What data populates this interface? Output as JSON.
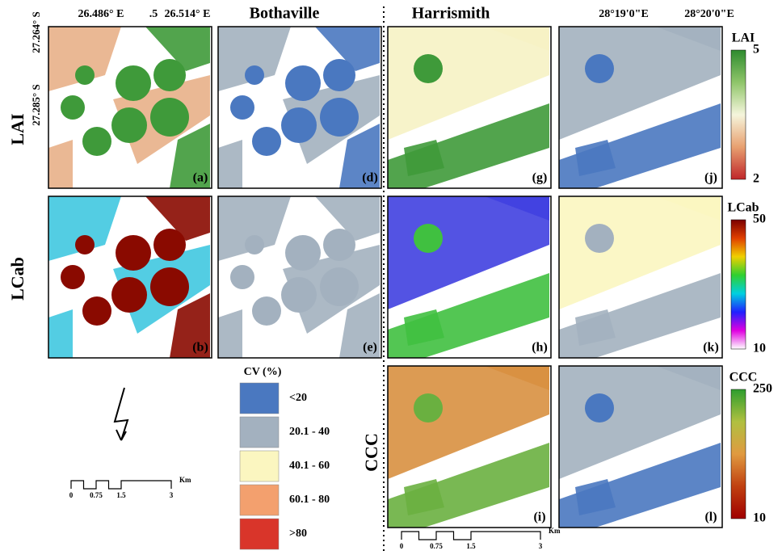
{
  "top_labels": {
    "lon1": "26.486° E",
    "lon2": ".5",
    "lon3": "26.514° E",
    "site1": "Bothaville",
    "site2": "Harrismith",
    "lon4": "28°19'0\"E",
    "lon5": "28°20'0\"E"
  },
  "lat_labels": [
    "27.264° S",
    "27.285° S"
  ],
  "row_labels": {
    "lai": "LAI",
    "lcab": "LCab",
    "ccc": "CCC"
  },
  "panels": [
    "(a)",
    "(b)",
    "(d)",
    "(e)",
    "(g)",
    "(h)",
    "(i)",
    "(j)",
    "(k)",
    "(l)"
  ],
  "colorbars": [
    {
      "title": "LAI",
      "max": "5",
      "min": "2",
      "colors": [
        "#2e8b2e",
        "#8fc56a",
        "#f5f5dc",
        "#e8a070",
        "#c0262a"
      ]
    },
    {
      "title": "LCab",
      "max": "50",
      "min": "10",
      "colors": [
        "#7a0000",
        "#e04000",
        "#f0d000",
        "#30d030",
        "#00d0e0",
        "#2020ff",
        "#e000e0",
        "#ffffff"
      ]
    },
    {
      "title": "CCC",
      "max": "250",
      "min": "10",
      "colors": [
        "#2e9e2e",
        "#b0c040",
        "#e09a40",
        "#c04010",
        "#a00000"
      ]
    }
  ],
  "legend": {
    "title": "CV (%)",
    "classes": [
      {
        "label": "<20",
        "color": "#4a78c0"
      },
      {
        "label": "20.1 - 40",
        "color": "#a3b1bf"
      },
      {
        "label": "40.1 - 60",
        "color": "#fbf6c0"
      },
      {
        "label": "60.1 - 80",
        "color": "#f3a06e"
      },
      {
        "label": ">80",
        "color": "#d9352a"
      }
    ]
  },
  "scalebar1": {
    "ticks": [
      "0",
      "0.75",
      "1.5",
      "3"
    ],
    "unit": "Km"
  },
  "scalebar2": {
    "ticks": [
      "0",
      "0.75",
      "1.5",
      "3"
    ],
    "unit": "Km"
  }
}
